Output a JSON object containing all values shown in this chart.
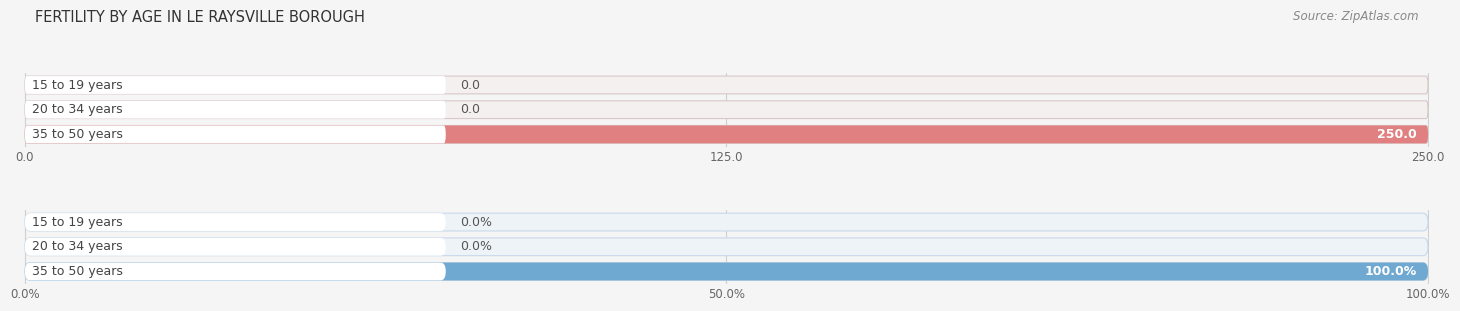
{
  "title": "FERTILITY BY AGE IN LE RAYSVILLE BOROUGH",
  "source": "Source: ZipAtlas.com",
  "top_chart": {
    "categories": [
      "15 to 19 years",
      "20 to 34 years",
      "35 to 50 years"
    ],
    "values": [
      0.0,
      0.0,
      250.0
    ],
    "bar_color": "#e08080",
    "bar_bg_color": "#f5f0f0",
    "border_color": "#d8c8c8",
    "label_color": "#444444",
    "value_color_inside": "#ffffff",
    "value_color_outside": "#555555",
    "xlim": [
      0,
      250
    ],
    "xticks": [
      0.0,
      125.0,
      250.0
    ],
    "xtick_labels": [
      "0.0",
      "125.0",
      "250.0"
    ]
  },
  "bottom_chart": {
    "categories": [
      "15 to 19 years",
      "20 to 34 years",
      "35 to 50 years"
    ],
    "values": [
      0.0,
      0.0,
      100.0
    ],
    "bar_color": "#6fa8d0",
    "bar_bg_color": "#eef3f8",
    "border_color": "#c8d8e8",
    "label_color": "#444444",
    "value_color_inside": "#ffffff",
    "value_color_outside": "#555555",
    "xlim": [
      0,
      100
    ],
    "xticks": [
      0.0,
      50.0,
      100.0
    ],
    "xtick_labels": [
      "0.0%",
      "50.0%",
      "100.0%"
    ]
  },
  "background_color": "#f5f5f5",
  "bar_height": 0.72,
  "title_fontsize": 10.5,
  "label_fontsize": 9,
  "value_fontsize": 9,
  "tick_fontsize": 8.5,
  "source_fontsize": 8.5
}
